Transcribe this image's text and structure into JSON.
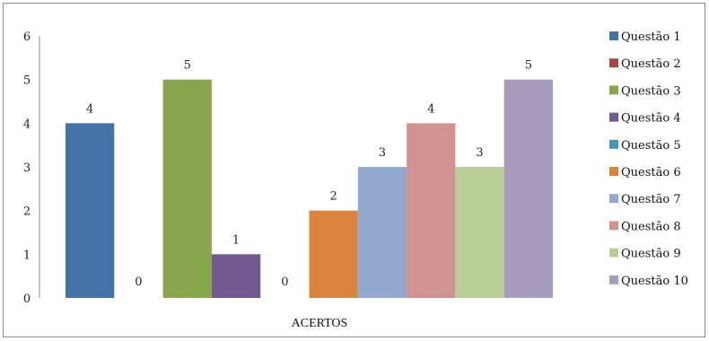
{
  "chart_data": {
    "type": "bar",
    "categories": [
      "ACERTOS"
    ],
    "xlabel": "ACERTOS",
    "ylim": [
      0,
      6
    ],
    "yticks": [
      0,
      1,
      2,
      3,
      4,
      5,
      6
    ],
    "grid": false,
    "legend_position": "right",
    "series": [
      {
        "name": "Questão 1",
        "values": [
          4
        ],
        "color": "#4572A7"
      },
      {
        "name": "Questão 2",
        "values": [
          0
        ],
        "color": "#AA4643"
      },
      {
        "name": "Questão 3",
        "values": [
          5
        ],
        "color": "#89A54E"
      },
      {
        "name": "Questão 4",
        "values": [
          1
        ],
        "color": "#71588F"
      },
      {
        "name": "Questão 5",
        "values": [
          0
        ],
        "color": "#4198AF"
      },
      {
        "name": "Questão 6",
        "values": [
          2
        ],
        "color": "#DB843D"
      },
      {
        "name": "Questão 7",
        "values": [
          3
        ],
        "color": "#93A9CF"
      },
      {
        "name": "Questão 8",
        "values": [
          4
        ],
        "color": "#D19392"
      },
      {
        "name": "Questão 9",
        "values": [
          3
        ],
        "color": "#B9CD96"
      },
      {
        "name": "Questão 10",
        "values": [
          5
        ],
        "color": "#A99BBD"
      }
    ]
  }
}
